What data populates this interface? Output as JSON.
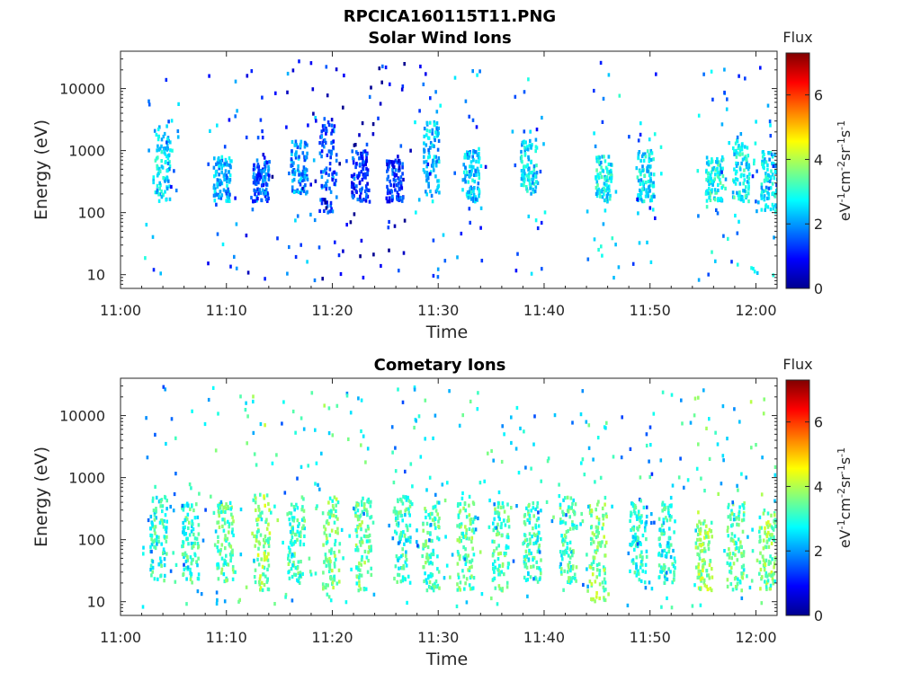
{
  "figure": {
    "title": "RPCICA160115T11.PNG"
  },
  "colors": {
    "colormap": [
      "#00008f",
      "#0000ff",
      "#0080ff",
      "#00ffff",
      "#80ff80",
      "#ffff00",
      "#ff8000",
      "#ff0000",
      "#800000"
    ],
    "axis": "#262626"
  },
  "chart_data": [
    {
      "type": "heatmap",
      "title": "Solar Wind Ions",
      "xlabel": "Time",
      "ylabel": "Energy (eV)",
      "yscale": "log",
      "xlim": [
        "11:00",
        "12:02"
      ],
      "ylim": [
        6,
        40000
      ],
      "xticks": [
        "11:00",
        "11:10",
        "11:20",
        "11:30",
        "11:40",
        "11:50",
        "12:00"
      ],
      "yticks": [
        10,
        100,
        1000,
        10000
      ],
      "yticklabels": [
        "10",
        "100",
        "1000",
        "10000"
      ],
      "colorbar": {
        "label_top": "Flux",
        "label": "eV-1cm-2sr-1s-1",
        "range": [
          0,
          7.3
        ],
        "ticks": [
          0,
          2,
          4,
          6
        ]
      },
      "clusters": [
        {
          "t": "11:03.8",
          "e_lo": 150,
          "e_hi": 2500,
          "level": 2.5
        },
        {
          "t": "11:09.5",
          "e_lo": 150,
          "e_hi": 800,
          "level": 2.2
        },
        {
          "t": "11:13.2",
          "e_lo": 150,
          "e_hi": 700,
          "level": 1.6
        },
        {
          "t": "11:16.8",
          "e_lo": 200,
          "e_hi": 1500,
          "level": 2.0
        },
        {
          "t": "11:19.5",
          "e_lo": 100,
          "e_hi": 3000,
          "level": 1.5
        },
        {
          "t": "11:22.5",
          "e_lo": 150,
          "e_hi": 1000,
          "level": 1.3
        },
        {
          "t": "11:25.8",
          "e_lo": 150,
          "e_hi": 700,
          "level": 1.2
        },
        {
          "t": "11:29.2",
          "e_lo": 150,
          "e_hi": 3000,
          "level": 2.3
        },
        {
          "t": "11:33.0",
          "e_lo": 150,
          "e_hi": 1000,
          "level": 2.4
        },
        {
          "t": "11:38.5",
          "e_lo": 200,
          "e_hi": 1500,
          "level": 2.5
        },
        {
          "t": "11:45.5",
          "e_lo": 150,
          "e_hi": 800,
          "level": 2.7
        },
        {
          "t": "11:49.5",
          "e_lo": 150,
          "e_hi": 1000,
          "level": 2.6
        },
        {
          "t": "11:56.0",
          "e_lo": 150,
          "e_hi": 800,
          "level": 2.8
        },
        {
          "t": "11:58.5",
          "e_lo": 150,
          "e_hi": 1500,
          "level": 2.7
        },
        {
          "t": "12:01.2",
          "e_lo": 100,
          "e_hi": 1000,
          "level": 2.5
        }
      ]
    },
    {
      "type": "heatmap",
      "title": "Cometary Ions",
      "xlabel": "Time",
      "ylabel": "Energy (eV)",
      "yscale": "log",
      "xlim": [
        "11:00",
        "12:02"
      ],
      "ylim": [
        6,
        40000
      ],
      "xticks": [
        "11:00",
        "11:10",
        "11:20",
        "11:30",
        "11:40",
        "11:50",
        "12:00"
      ],
      "yticks": [
        10,
        100,
        1000,
        10000
      ],
      "yticklabels": [
        "10",
        "100",
        "1000",
        "10000"
      ],
      "colorbar": {
        "label_top": "Flux",
        "label": "eV-1cm-2sr-1s-1",
        "range": [
          0,
          7.3
        ],
        "ticks": [
          0,
          2,
          4,
          6
        ]
      },
      "clusters": [
        {
          "t": "11:03.5",
          "e_lo": 20,
          "e_hi": 600,
          "level": 3.0
        },
        {
          "t": "11:06.5",
          "e_lo": 20,
          "e_hi": 400,
          "level": 3.1
        },
        {
          "t": "11:09.8",
          "e_lo": 20,
          "e_hi": 400,
          "level": 3.3
        },
        {
          "t": "11:13.2",
          "e_lo": 15,
          "e_hi": 600,
          "level": 3.7
        },
        {
          "t": "11:16.5",
          "e_lo": 20,
          "e_hi": 500,
          "level": 3.2
        },
        {
          "t": "11:19.8",
          "e_lo": 15,
          "e_hi": 500,
          "level": 3.5
        },
        {
          "t": "11:22.8",
          "e_lo": 15,
          "e_hi": 500,
          "level": 3.4
        },
        {
          "t": "11:26.5",
          "e_lo": 20,
          "e_hi": 500,
          "level": 3.0
        },
        {
          "t": "11:29.2",
          "e_lo": 15,
          "e_hi": 400,
          "level": 3.2
        },
        {
          "t": "11:32.5",
          "e_lo": 15,
          "e_hi": 400,
          "level": 3.4
        },
        {
          "t": "11:35.8",
          "e_lo": 15,
          "e_hi": 400,
          "level": 3.3
        },
        {
          "t": "11:38.8",
          "e_lo": 20,
          "e_hi": 400,
          "level": 3.1
        },
        {
          "t": "11:42.2",
          "e_lo": 20,
          "e_hi": 500,
          "level": 3.2
        },
        {
          "t": "11:45.0",
          "e_lo": 10,
          "e_hi": 400,
          "level": 3.6
        },
        {
          "t": "11:48.8",
          "e_lo": 20,
          "e_hi": 400,
          "level": 3.0
        },
        {
          "t": "11:51.5",
          "e_lo": 20,
          "e_hi": 400,
          "level": 2.9
        },
        {
          "t": "11:55.0",
          "e_lo": 15,
          "e_hi": 200,
          "level": 3.8
        },
        {
          "t": "11:58.0",
          "e_lo": 15,
          "e_hi": 400,
          "level": 3.3
        },
        {
          "t": "12:01.0",
          "e_lo": 15,
          "e_hi": 300,
          "level": 3.7
        }
      ]
    }
  ]
}
